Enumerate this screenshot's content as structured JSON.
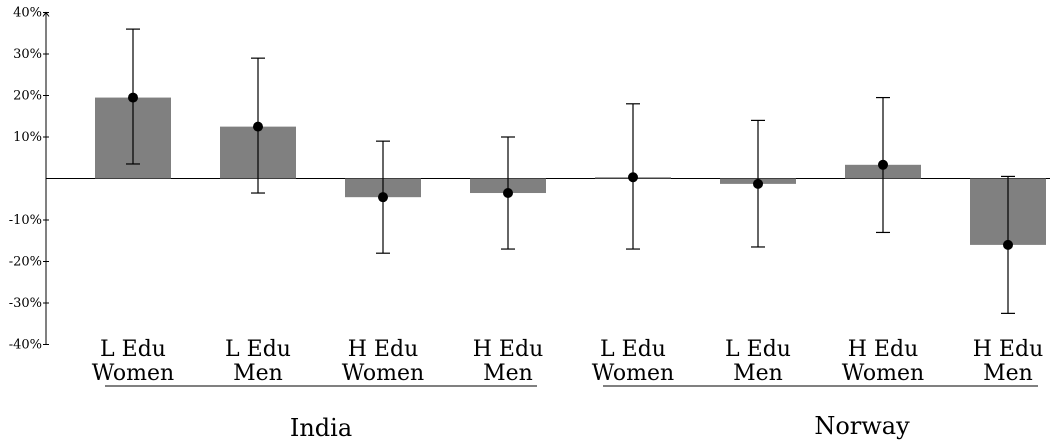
{
  "chart_data": {
    "type": "bar",
    "ylim": [
      -40,
      40
    ],
    "yticks": [
      -40,
      -30,
      -20,
      -10,
      10,
      20,
      30,
      40
    ],
    "ytick_labels": [
      "-40%",
      "-30%",
      "-20%",
      "-10%",
      "10%",
      "20%",
      "30%",
      "40%"
    ],
    "bar_color": "#808080",
    "categories": [
      {
        "line1": "L Edu",
        "line2": "Women",
        "group": "India",
        "value": 19.5,
        "err_low": 3.5,
        "err_high": 36
      },
      {
        "line1": "L Edu",
        "line2": "Men",
        "group": "India",
        "value": 12.5,
        "err_low": -3.5,
        "err_high": 29
      },
      {
        "line1": "H Edu",
        "line2": "Women",
        "group": "India",
        "value": -4.5,
        "err_low": -18,
        "err_high": 9
      },
      {
        "line1": "H Edu",
        "line2": "Men",
        "group": "India",
        "value": -3.5,
        "err_low": -17,
        "err_high": 10
      },
      {
        "line1": "L Edu",
        "line2": "Women",
        "group": "Norway",
        "value": 0.3,
        "err_low": -17,
        "err_high": 18
      },
      {
        "line1": "L Edu",
        "line2": "Men",
        "group": "Norway",
        "value": -1.3,
        "err_low": -16.5,
        "err_high": 14
      },
      {
        "line1": "H Edu",
        "line2": "Women",
        "group": "Norway",
        "value": 3.3,
        "err_low": -13,
        "err_high": 19.5
      },
      {
        "line1": "H Edu",
        "line2": "Men",
        "group": "Norway",
        "value": -16,
        "err_low": -32.5,
        "err_high": 0.5
      }
    ],
    "groups": [
      "India",
      "Norway"
    ]
  }
}
